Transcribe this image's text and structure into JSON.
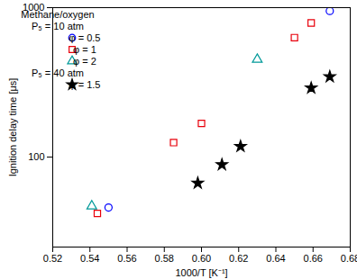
{
  "chart_data": {
    "type": "scatter",
    "x_label": "1000/T [K⁻¹]",
    "y_label": "Ignition delay time [μs]",
    "xlim": [
      0.52,
      0.68
    ],
    "xticks": [
      0.52,
      0.54,
      0.56,
      0.58,
      {
        "value": 0.6,
        "label": "0.60"
      },
      0.62,
      0.64,
      0.66,
      0.68
    ],
    "ylim": [
      25,
      1000
    ],
    "yticks": [
      100,
      1000
    ],
    "log": "y",
    "grid": false,
    "legend": "upper left",
    "legend_title": "Methane/oxygen",
    "series": [
      {
        "name": "φ = 0.5",
        "pressure": "P₅ = 10 atm",
        "color": "#0000ff",
        "marker": "circle",
        "x": [
          0.55,
          0.669
        ],
        "values": [
          46,
          950
        ]
      },
      {
        "name": "φ = 1",
        "pressure": "P₅ = 10 atm",
        "color": "#e8000b",
        "marker": "square",
        "x": [
          0.544,
          0.585,
          0.6,
          0.65,
          0.659
        ],
        "values": [
          42,
          125,
          168,
          630,
          790
        ]
      },
      {
        "name": "φ = 2",
        "pressure": "P₅ = 10 atm",
        "color": "#009999",
        "marker": "triangle",
        "x": [
          0.541,
          0.63
        ],
        "values": [
          47,
          450
        ]
      },
      {
        "name": "φ = 1.5",
        "pressure": "P₅ = 40 atm",
        "color": "#000000",
        "marker": "star",
        "x": [
          0.598,
          0.611,
          0.621,
          0.659,
          0.669
        ],
        "values": [
          67,
          89,
          118,
          290,
          345
        ]
      }
    ]
  }
}
